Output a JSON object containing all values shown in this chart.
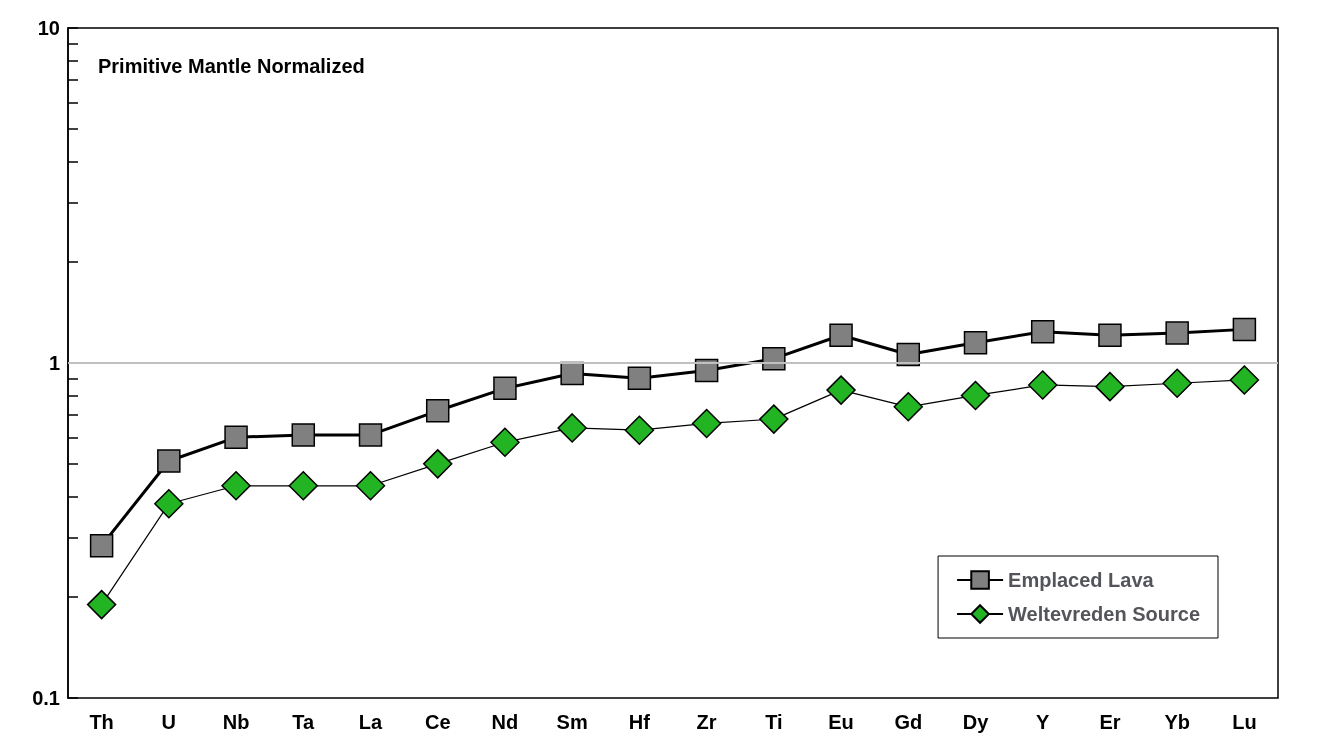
{
  "chart_data": {
    "type": "line",
    "categories": [
      "Th",
      "U",
      "Nb",
      "Ta",
      "La",
      "Ce",
      "Nd",
      "Sm",
      "Hf",
      "Zr",
      "Ti",
      "Eu",
      "Gd",
      "Dy",
      "Y",
      "Er",
      "Yb",
      "Lu"
    ],
    "series": [
      {
        "name": "Emplaced Lava",
        "color": "#808080",
        "marker": "square",
        "values": [
          0.285,
          0.51,
          0.6,
          0.61,
          0.61,
          0.72,
          0.84,
          0.93,
          0.9,
          0.95,
          1.03,
          1.21,
          1.06,
          1.15,
          1.24,
          1.21,
          1.23,
          1.26
        ]
      },
      {
        "name": "Weltevreden Source",
        "color": "#22b422",
        "marker": "diamond",
        "values": [
          0.19,
          0.38,
          0.43,
          0.43,
          0.43,
          0.5,
          0.58,
          0.64,
          0.63,
          0.66,
          0.68,
          0.83,
          0.74,
          0.8,
          0.86,
          0.85,
          0.87,
          0.89
        ]
      }
    ],
    "log": true,
    "ylim": [
      0.1,
      10
    ],
    "yticks": [
      0.1,
      {
        "value": 0.2,
        "label": null
      },
      {
        "value": 0.3,
        "label": null
      },
      {
        "value": 0.4,
        "label": null
      },
      {
        "value": 0.5,
        "label": null
      },
      {
        "value": 0.6,
        "label": null
      },
      {
        "value": 0.7,
        "label": null
      },
      {
        "value": 0.8,
        "label": null
      },
      {
        "value": 0.9,
        "label": null
      },
      1,
      {
        "value": 2,
        "label": null
      },
      {
        "value": 3,
        "label": null
      },
      {
        "value": 4,
        "label": null
      },
      {
        "value": 5,
        "label": null
      },
      {
        "value": 6,
        "label": null
      },
      {
        "value": 7,
        "label": null
      },
      {
        "value": 8,
        "label": null
      },
      {
        "value": 9,
        "label": null
      },
      10
    ],
    "ref_lines": [
      {
        "axis": "y",
        "value": 1,
        "label": null,
        "color": "#c0c0c0"
      }
    ],
    "annotations": [
      "Primitive Mantle Normalized"
    ],
    "legend": "bottom right",
    "grid": false
  }
}
